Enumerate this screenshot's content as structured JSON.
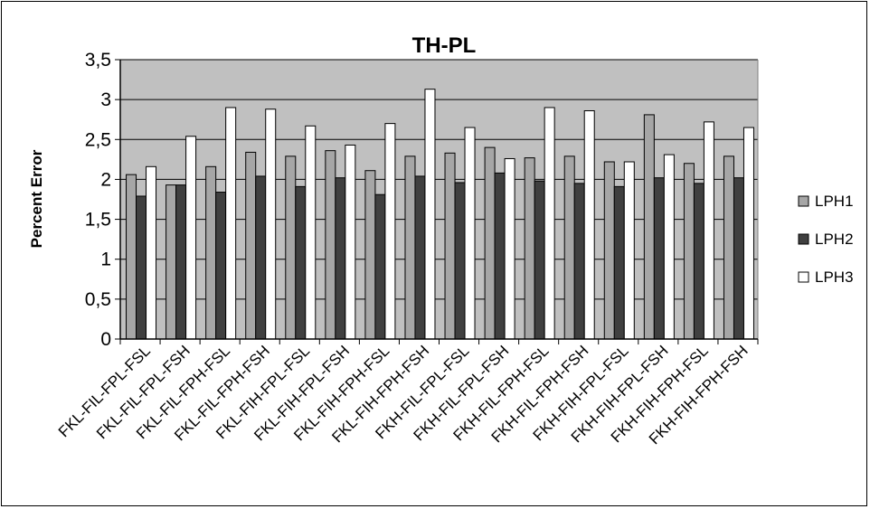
{
  "chart_data": {
    "type": "bar",
    "title": "TH-PL",
    "ylabel": "Percent Error",
    "xlabel": "",
    "ylim": [
      0,
      3.5
    ],
    "y_ticks": [
      "0",
      "0,5",
      "1",
      "1,5",
      "2",
      "2,5",
      "3",
      "3,5"
    ],
    "y_tick_values": [
      0,
      0.5,
      1,
      1.5,
      2,
      2.5,
      3,
      3.5
    ],
    "grid": true,
    "legend_position": "right",
    "categories": [
      "FKL-FIL-FPL-FSL",
      "FKL-FIL-FPL-FSH",
      "FKL-FIL-FPH-FSL",
      "FKL-FIL-FPH-FSH",
      "FKL-FIH-FPL-FSL",
      "FKL-FIH-FPL-FSH",
      "FKL-FIH-FPH-FSL",
      "FKL-FIH-FPH-FSH",
      "FKH-FIL-FPL-FSL",
      "FKH-FIL-FPL-FSH",
      "FKH-FIL-FPH-FSL",
      "FKH-FIL-FPH-FSH",
      "FKH-FIH-FPL-FSL",
      "FKH-FIH-FPL-FSH",
      "FKH-FIH-FPH-FSL",
      "FKH-FIH-FPH-FSH"
    ],
    "series": [
      {
        "name": "LPH1",
        "color": "#a6a6a6",
        "values": [
          2.06,
          1.93,
          2.16,
          2.34,
          2.29,
          2.36,
          2.11,
          2.29,
          2.33,
          2.4,
          2.27,
          2.29,
          2.22,
          2.81,
          2.2,
          2.29
        ]
      },
      {
        "name": "LPH2",
        "color": "#404040",
        "values": [
          1.79,
          1.93,
          1.84,
          2.04,
          1.91,
          2.02,
          1.81,
          2.04,
          1.96,
          2.08,
          1.98,
          1.95,
          1.91,
          2.02,
          1.95,
          2.02
        ]
      },
      {
        "name": "LPH3",
        "color": "#ffffff",
        "values": [
          2.16,
          2.54,
          2.9,
          2.88,
          2.67,
          2.43,
          2.7,
          3.13,
          2.65,
          2.26,
          2.9,
          2.86,
          2.22,
          2.31,
          2.72,
          2.65
        ]
      }
    ]
  }
}
